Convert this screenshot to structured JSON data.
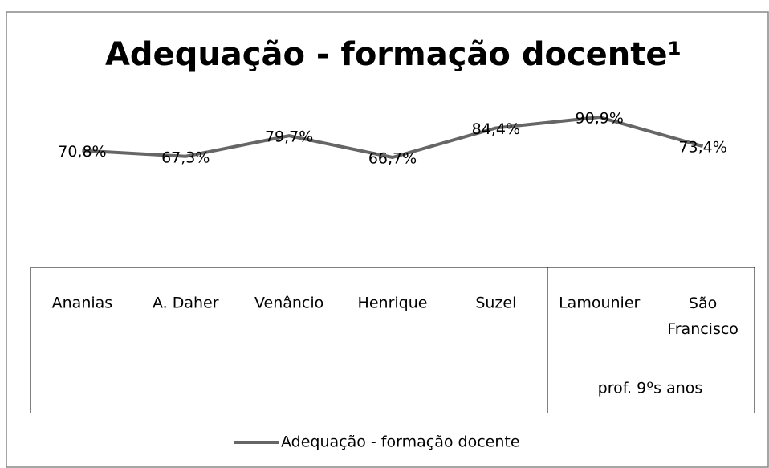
{
  "chart_data": {
    "type": "line",
    "title": "Adequação - formação docente¹",
    "categories": [
      "Ananias",
      "A. Daher",
      "Venâncio",
      "Henrique",
      "Suzel",
      "Lamounier",
      "São Francisco"
    ],
    "group_label": "prof. 9ºs anos",
    "series": [
      {
        "name": "Adequação - formação docente",
        "color": "#666666",
        "values": [
          70.8,
          67.3,
          79.7,
          66.7,
          84.4,
          90.9,
          73.4
        ],
        "value_labels": [
          "70,8%",
          "67,3%",
          "79,7%",
          "66,7%",
          "84,4%",
          "90,9%",
          "73,4%"
        ]
      }
    ],
    "legend": "bottom"
  }
}
